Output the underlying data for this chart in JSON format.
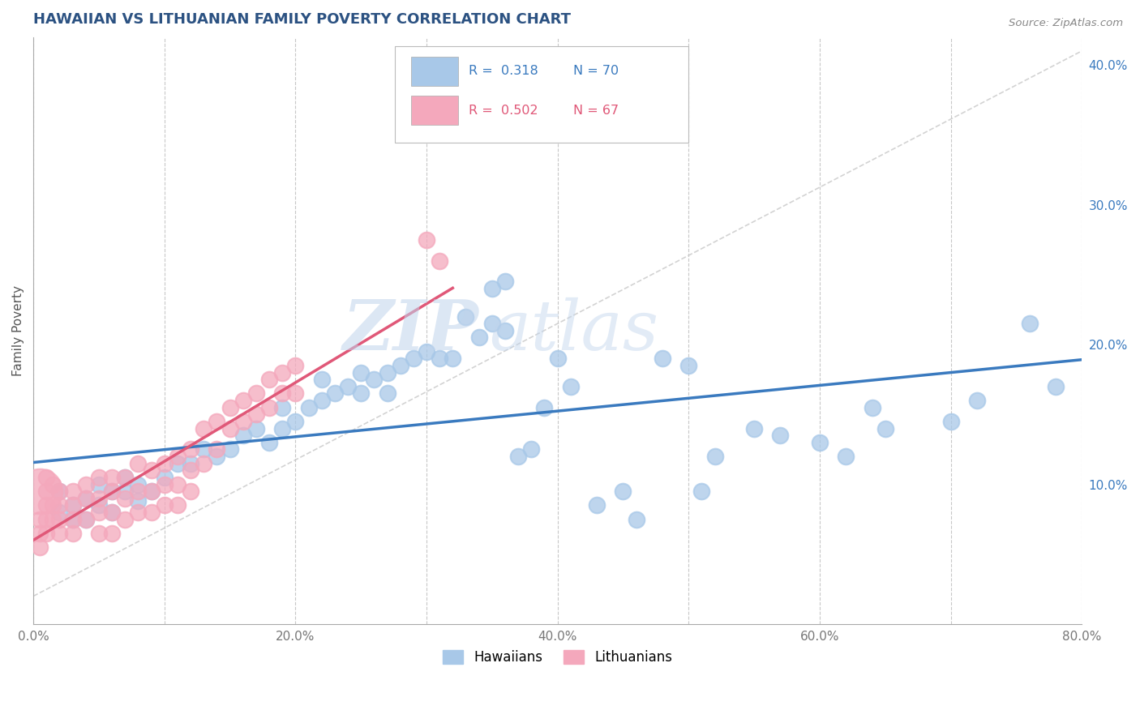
{
  "title": "HAWAIIAN VS LITHUANIAN FAMILY POVERTY CORRELATION CHART",
  "source_text": "Source: ZipAtlas.com",
  "xlabel": "",
  "ylabel": "Family Poverty",
  "xlim": [
    0.0,
    0.8
  ],
  "ylim": [
    0.0,
    0.42
  ],
  "xticks": [
    0.0,
    0.1,
    0.2,
    0.3,
    0.4,
    0.5,
    0.6,
    0.7,
    0.8
  ],
  "xticklabels": [
    "0.0%",
    "",
    "20.0%",
    "",
    "40.0%",
    "",
    "60.0%",
    "",
    "80.0%"
  ],
  "yticks_right": [
    0.1,
    0.2,
    0.3,
    0.4
  ],
  "ytick_labels_right": [
    "10.0%",
    "20.0%",
    "30.0%",
    "40.0%"
  ],
  "hawaiians_color": "#a8c8e8",
  "lithuanians_color": "#f4a8bc",
  "trendline_color_hawaiians": "#3a7abf",
  "trendline_color_lithuanians": "#e05878",
  "diag_line_color": "#c8c8c8",
  "R_hawaiians": 0.318,
  "N_hawaiians": 70,
  "R_lithuanians": 0.502,
  "N_lithuanians": 67,
  "background_color": "#ffffff",
  "grid_color": "#c8c8c8",
  "watermark_text": "ZIP",
  "watermark_text2": "atlas",
  "title_color": "#2c5282",
  "dot_size": 200,
  "big_dot_size": 1800,
  "hawaiians_scatter": [
    [
      0.02,
      0.095
    ],
    [
      0.02,
      0.08
    ],
    [
      0.03,
      0.085
    ],
    [
      0.03,
      0.075
    ],
    [
      0.04,
      0.09
    ],
    [
      0.04,
      0.075
    ],
    [
      0.05,
      0.1
    ],
    [
      0.05,
      0.085
    ],
    [
      0.06,
      0.095
    ],
    [
      0.06,
      0.08
    ],
    [
      0.07,
      0.105
    ],
    [
      0.07,
      0.095
    ],
    [
      0.08,
      0.1
    ],
    [
      0.08,
      0.088
    ],
    [
      0.09,
      0.095
    ],
    [
      0.1,
      0.105
    ],
    [
      0.11,
      0.115
    ],
    [
      0.12,
      0.115
    ],
    [
      0.13,
      0.125
    ],
    [
      0.14,
      0.12
    ],
    [
      0.15,
      0.125
    ],
    [
      0.16,
      0.135
    ],
    [
      0.17,
      0.14
    ],
    [
      0.18,
      0.13
    ],
    [
      0.19,
      0.14
    ],
    [
      0.19,
      0.155
    ],
    [
      0.2,
      0.145
    ],
    [
      0.21,
      0.155
    ],
    [
      0.22,
      0.16
    ],
    [
      0.22,
      0.175
    ],
    [
      0.23,
      0.165
    ],
    [
      0.24,
      0.17
    ],
    [
      0.25,
      0.18
    ],
    [
      0.25,
      0.165
    ],
    [
      0.26,
      0.175
    ],
    [
      0.27,
      0.18
    ],
    [
      0.27,
      0.165
    ],
    [
      0.28,
      0.185
    ],
    [
      0.29,
      0.19
    ],
    [
      0.3,
      0.195
    ],
    [
      0.31,
      0.19
    ],
    [
      0.32,
      0.19
    ],
    [
      0.33,
      0.22
    ],
    [
      0.34,
      0.205
    ],
    [
      0.35,
      0.215
    ],
    [
      0.36,
      0.21
    ],
    [
      0.37,
      0.12
    ],
    [
      0.38,
      0.125
    ],
    [
      0.39,
      0.155
    ],
    [
      0.4,
      0.19
    ],
    [
      0.41,
      0.17
    ],
    [
      0.43,
      0.085
    ],
    [
      0.45,
      0.095
    ],
    [
      0.46,
      0.075
    ],
    [
      0.48,
      0.19
    ],
    [
      0.5,
      0.185
    ],
    [
      0.51,
      0.095
    ],
    [
      0.52,
      0.12
    ],
    [
      0.55,
      0.14
    ],
    [
      0.57,
      0.135
    ],
    [
      0.6,
      0.13
    ],
    [
      0.62,
      0.12
    ],
    [
      0.64,
      0.155
    ],
    [
      0.65,
      0.14
    ],
    [
      0.7,
      0.145
    ],
    [
      0.72,
      0.16
    ],
    [
      0.76,
      0.215
    ],
    [
      0.78,
      0.17
    ],
    [
      0.35,
      0.24
    ],
    [
      0.36,
      0.245
    ]
  ],
  "lithuanians_scatter": [
    [
      0.005,
      0.075
    ],
    [
      0.005,
      0.065
    ],
    [
      0.005,
      0.055
    ],
    [
      0.01,
      0.085
    ],
    [
      0.01,
      0.075
    ],
    [
      0.01,
      0.065
    ],
    [
      0.01,
      0.095
    ],
    [
      0.01,
      0.105
    ],
    [
      0.015,
      0.1
    ],
    [
      0.015,
      0.085
    ],
    [
      0.015,
      0.075
    ],
    [
      0.02,
      0.095
    ],
    [
      0.02,
      0.085
    ],
    [
      0.02,
      0.075
    ],
    [
      0.02,
      0.065
    ],
    [
      0.03,
      0.095
    ],
    [
      0.03,
      0.085
    ],
    [
      0.03,
      0.075
    ],
    [
      0.03,
      0.065
    ],
    [
      0.04,
      0.1
    ],
    [
      0.04,
      0.09
    ],
    [
      0.04,
      0.075
    ],
    [
      0.05,
      0.105
    ],
    [
      0.05,
      0.09
    ],
    [
      0.05,
      0.08
    ],
    [
      0.05,
      0.065
    ],
    [
      0.06,
      0.105
    ],
    [
      0.06,
      0.095
    ],
    [
      0.06,
      0.08
    ],
    [
      0.06,
      0.065
    ],
    [
      0.07,
      0.105
    ],
    [
      0.07,
      0.09
    ],
    [
      0.07,
      0.075
    ],
    [
      0.08,
      0.115
    ],
    [
      0.08,
      0.095
    ],
    [
      0.08,
      0.08
    ],
    [
      0.09,
      0.11
    ],
    [
      0.09,
      0.095
    ],
    [
      0.09,
      0.08
    ],
    [
      0.1,
      0.115
    ],
    [
      0.1,
      0.1
    ],
    [
      0.1,
      0.085
    ],
    [
      0.11,
      0.12
    ],
    [
      0.11,
      0.1
    ],
    [
      0.11,
      0.085
    ],
    [
      0.12,
      0.125
    ],
    [
      0.12,
      0.11
    ],
    [
      0.12,
      0.095
    ],
    [
      0.13,
      0.14
    ],
    [
      0.13,
      0.115
    ],
    [
      0.14,
      0.145
    ],
    [
      0.14,
      0.125
    ],
    [
      0.15,
      0.155
    ],
    [
      0.15,
      0.14
    ],
    [
      0.16,
      0.16
    ],
    [
      0.16,
      0.145
    ],
    [
      0.17,
      0.165
    ],
    [
      0.17,
      0.15
    ],
    [
      0.18,
      0.175
    ],
    [
      0.18,
      0.155
    ],
    [
      0.19,
      0.18
    ],
    [
      0.19,
      0.165
    ],
    [
      0.2,
      0.185
    ],
    [
      0.2,
      0.165
    ],
    [
      0.3,
      0.275
    ],
    [
      0.31,
      0.26
    ]
  ],
  "lit_big_dot": [
    0.005,
    0.095
  ],
  "lit_big_dot_size": 1600
}
